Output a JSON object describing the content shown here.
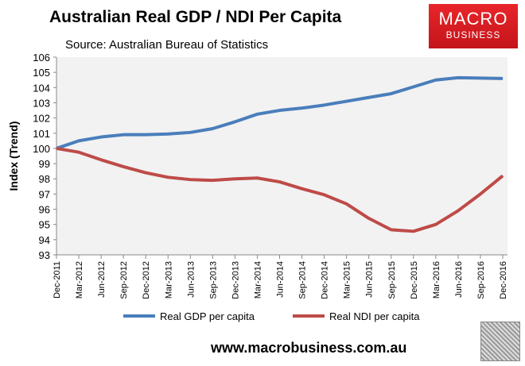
{
  "header": {
    "title": "Australian Real GDP / NDI Per Capita",
    "subtitle": "Source: Australian Bureau of Statistics"
  },
  "logo": {
    "line1": "MACRO",
    "line2": "BUSINESS"
  },
  "footer": {
    "url": "www.macrobusiness.com.au"
  },
  "chart_data": {
    "type": "line",
    "title": "Australian Real GDP / NDI Per Capita",
    "ylabel": "Index (Trend)",
    "xlabel": "",
    "ylim": [
      93,
      106
    ],
    "yticks": [
      93,
      94,
      95,
      96,
      97,
      98,
      99,
      100,
      101,
      102,
      103,
      104,
      105,
      106
    ],
    "categories": [
      "Dec-2011",
      "Mar-2012",
      "Jun-2012",
      "Sep-2012",
      "Dec-2012",
      "Mar-2013",
      "Jun-2013",
      "Sep-2013",
      "Dec-2013",
      "Mar-2014",
      "Jun-2014",
      "Sep-2014",
      "Dec-2014",
      "Mar-2015",
      "Jun-2015",
      "Sep-2015",
      "Dec-2015",
      "Mar-2016",
      "Jun-2016",
      "Sep-2016",
      "Dec-2016"
    ],
    "series": [
      {
        "name": "Real GDP per capita",
        "color": "#4a7ebb",
        "values": [
          100,
          100.5,
          100.75,
          100.9,
          100.9,
          100.95,
          101.05,
          101.3,
          101.75,
          102.25,
          102.5,
          102.65,
          102.85,
          103.1,
          103.35,
          103.6,
          104.05,
          104.5,
          104.65,
          104.62,
          104.6
        ]
      },
      {
        "name": "Real NDI per capita",
        "color": "#be4b48",
        "values": [
          100,
          99.75,
          99.25,
          98.8,
          98.4,
          98.1,
          97.95,
          97.9,
          98.0,
          98.05,
          97.8,
          97.35,
          96.95,
          96.35,
          95.4,
          94.65,
          94.55,
          95.0,
          95.9,
          97.0,
          98.2
        ]
      }
    ],
    "legend": "bottom",
    "grid": false
  }
}
